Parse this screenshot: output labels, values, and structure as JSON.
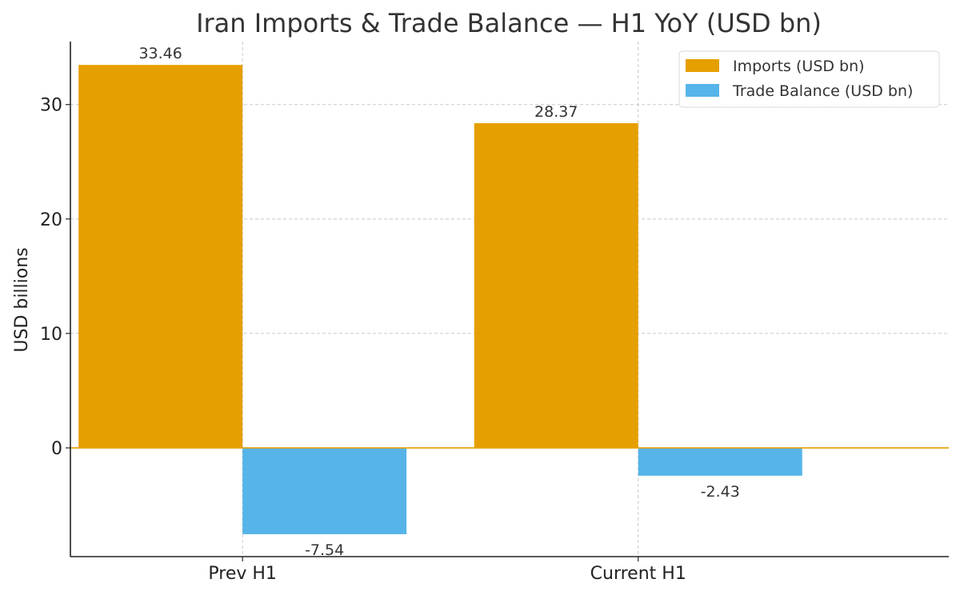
{
  "chart_data": {
    "type": "bar",
    "title": "Iran Imports & Trade Balance — H1 YoY (USD bn)",
    "xlabel": "",
    "ylabel": "USD billions",
    "categories": [
      "Prev H1",
      "Current H1"
    ],
    "series": [
      {
        "name": "Imports (USD bn)",
        "values": [
          33.46,
          28.37
        ],
        "labels": [
          "33.46",
          "28.37"
        ],
        "color": "#E69F00"
      },
      {
        "name": "Trade Balance (USD bn)",
        "values": [
          -7.54,
          -2.43
        ],
        "labels": [
          "-7.54",
          "-2.43"
        ],
        "color": "#56B4E9"
      }
    ],
    "ylim": [
      -9.5,
      35.5
    ],
    "yticks": [
      0,
      10,
      20,
      30
    ],
    "ytick_labels": [
      "0",
      "10",
      "20",
      "30"
    ],
    "grid": true,
    "legend_position": "top-right",
    "zero_line_color": "#E69F00"
  }
}
